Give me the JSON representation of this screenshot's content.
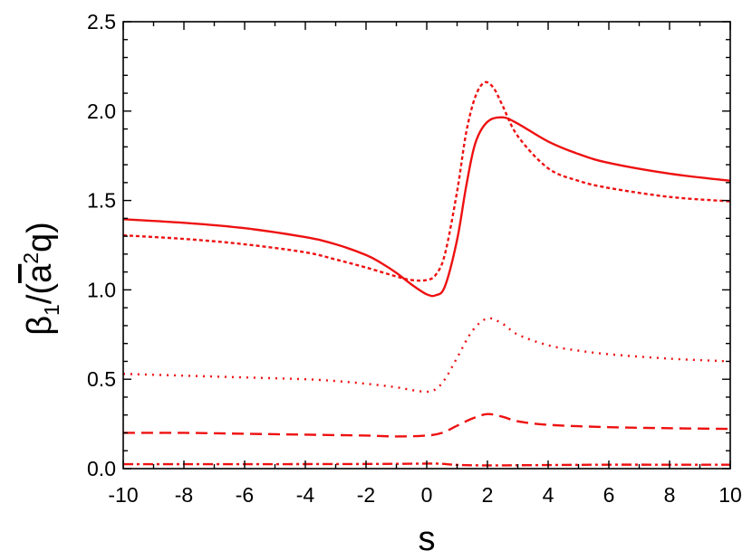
{
  "chart_data": {
    "type": "line",
    "title": "",
    "xlabel": "s",
    "ylabel_parts": {
      "base": "β",
      "sub": "1",
      "open": "/(",
      "abar": "a",
      "sup": "2",
      "close": "q)"
    },
    "xlim": [
      -10,
      10
    ],
    "ylim": [
      0,
      2.5
    ],
    "xticks": [
      -10,
      -8,
      -6,
      -4,
      -2,
      0,
      2,
      4,
      6,
      8,
      10
    ],
    "xtick_labels": [
      "-10",
      "-8",
      "-6",
      "-4",
      "-2",
      "0",
      "2",
      "4",
      "6",
      "8",
      "10"
    ],
    "yticks": [
      0,
      0.5,
      1,
      1.5,
      2,
      2.5
    ],
    "ytick_labels": [
      "0.0",
      "0.5",
      "1.0",
      "1.5",
      "2.0",
      "2.5"
    ],
    "grid": false,
    "legend": "none",
    "color": "#ee1111",
    "series": [
      {
        "style": "solid",
        "x": [
          -10,
          -8,
          -6,
          -4,
          -3,
          -2,
          -1.5,
          -1,
          -0.5,
          0,
          0.3,
          0.6,
          1,
          1.3,
          1.6,
          2,
          2.5,
          3,
          4,
          5,
          6,
          8,
          10
        ],
        "y": [
          1.395,
          1.375,
          1.345,
          1.295,
          1.255,
          1.195,
          1.15,
          1.095,
          1.03,
          0.975,
          0.97,
          1.02,
          1.28,
          1.58,
          1.82,
          1.94,
          1.965,
          1.93,
          1.83,
          1.76,
          1.71,
          1.65,
          1.61
        ]
      },
      {
        "style": "short-dash",
        "x": [
          -10,
          -8,
          -6,
          -4,
          -3,
          -2,
          -1,
          -0.5,
          0,
          0.3,
          0.6,
          1,
          1.3,
          1.6,
          1.9,
          2.2,
          2.5,
          3,
          4,
          5,
          6,
          8,
          10
        ],
        "y": [
          1.305,
          1.285,
          1.255,
          1.21,
          1.17,
          1.125,
          1.075,
          1.055,
          1.055,
          1.085,
          1.2,
          1.55,
          1.88,
          2.08,
          2.16,
          2.13,
          2.03,
          1.86,
          1.68,
          1.61,
          1.57,
          1.52,
          1.495
        ]
      },
      {
        "style": "dotted",
        "x": [
          -10,
          -8,
          -6,
          -4,
          -3,
          -2,
          -1,
          -0.5,
          0,
          0.3,
          0.6,
          1,
          1.5,
          2,
          2.5,
          3,
          4,
          5,
          6,
          8,
          10
        ],
        "y": [
          0.53,
          0.52,
          0.51,
          0.5,
          0.49,
          0.475,
          0.455,
          0.44,
          0.43,
          0.445,
          0.5,
          0.62,
          0.77,
          0.84,
          0.81,
          0.75,
          0.69,
          0.66,
          0.64,
          0.615,
          0.6
        ]
      },
      {
        "style": "long-dash",
        "x": [
          -10,
          -8,
          -6,
          -4,
          -2,
          -1,
          0,
          0.5,
          1,
          1.5,
          2,
          2.5,
          3,
          4,
          6,
          8,
          10
        ],
        "y": [
          0.2,
          0.2,
          0.195,
          0.19,
          0.185,
          0.18,
          0.185,
          0.2,
          0.24,
          0.28,
          0.305,
          0.29,
          0.265,
          0.245,
          0.232,
          0.226,
          0.222
        ]
      },
      {
        "style": "dash-dot",
        "x": [
          -10,
          -6,
          -2,
          0,
          0.5,
          1,
          2,
          4,
          6,
          8,
          10
        ],
        "y": [
          0.025,
          0.025,
          0.026,
          0.028,
          0.027,
          0.021,
          0.018,
          0.02,
          0.022,
          0.022,
          0.022
        ]
      }
    ]
  }
}
